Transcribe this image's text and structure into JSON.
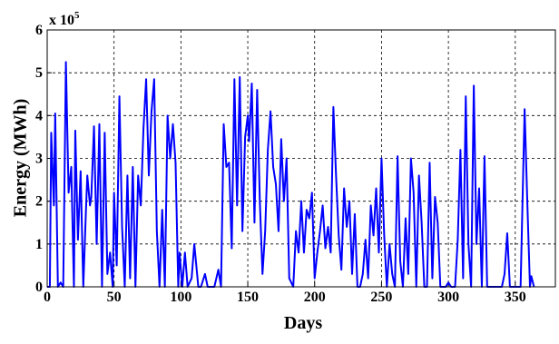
{
  "chart_data": {
    "type": "line",
    "xlabel": "Days",
    "ylabel": "Energy (MWh)",
    "exponent_base": "x 10",
    "exponent": "5",
    "xlim": [
      0,
      380
    ],
    "ylim": [
      0,
      6
    ],
    "xticks": [
      0,
      50,
      100,
      150,
      200,
      250,
      300,
      350
    ],
    "yticks": [
      0,
      1,
      2,
      3,
      4,
      5,
      6
    ],
    "grid": true,
    "x": [
      0,
      2,
      3,
      5,
      6,
      8,
      10,
      12,
      14,
      16,
      18,
      20,
      21,
      23,
      25,
      27,
      29,
      30,
      32,
      33,
      35,
      37,
      39,
      41,
      43,
      45,
      47,
      49,
      50,
      52,
      54,
      56,
      58,
      60,
      62,
      64,
      66,
      68,
      70,
      72,
      74,
      76,
      78,
      80,
      82,
      84,
      86,
      88,
      90,
      92,
      94,
      96,
      98,
      99,
      101,
      103,
      105,
      108,
      110,
      113,
      115,
      118,
      120,
      125,
      128,
      130,
      132,
      134,
      136,
      138,
      140,
      142,
      144,
      146,
      148,
      150,
      151,
      153,
      155,
      157,
      159,
      161,
      163,
      165,
      167,
      169,
      171,
      173,
      175,
      177,
      179,
      181,
      184,
      186,
      188,
      190,
      192,
      194,
      196,
      198,
      200,
      202,
      204,
      206,
      208,
      210,
      212,
      214,
      216,
      218,
      220,
      222,
      224,
      226,
      228,
      230,
      232,
      234,
      236,
      238,
      240,
      242,
      244,
      246,
      248,
      250,
      252,
      254,
      256,
      258,
      260,
      262,
      264,
      266,
      268,
      270,
      272,
      274,
      276,
      278,
      280,
      282,
      284,
      286,
      288,
      290,
      292,
      294,
      296,
      298,
      300,
      302,
      305,
      307,
      309,
      311,
      313,
      315,
      317,
      319,
      321,
      323,
      325,
      327,
      329,
      332,
      340,
      342,
      344,
      346,
      354,
      357,
      359,
      361,
      362,
      364
    ],
    "series": [
      {
        "name": "Energy",
        "color": "#0000ff",
        "values": [
          0,
          0,
          3.6,
          1.9,
          4.05,
          0,
          0.1,
          0,
          5.25,
          2.2,
          2.8,
          0,
          3.65,
          1.1,
          2.7,
          0,
          1.8,
          2.6,
          1.9,
          2.1,
          3.75,
          1.0,
          3.8,
          0,
          3.6,
          0.3,
          0.8,
          0,
          2.2,
          0.5,
          4.45,
          1.4,
          0,
          2.6,
          0.2,
          2.8,
          0,
          2.6,
          1.9,
          3.7,
          4.85,
          2.6,
          4.1,
          4.85,
          1.3,
          0,
          1.8,
          0,
          4.0,
          3.0,
          3.8,
          2.9,
          0,
          0.8,
          0,
          0.8,
          0,
          0.2,
          1.0,
          0,
          0,
          0.3,
          0,
          0,
          0.4,
          0,
          3.8,
          2.8,
          2.9,
          0.9,
          4.85,
          1.9,
          4.9,
          1.3,
          3.5,
          4.0,
          3.4,
          4.75,
          1.5,
          4.6,
          2.0,
          0.3,
          1.3,
          3.2,
          4.1,
          2.8,
          2.4,
          1.3,
          3.45,
          2.0,
          3.0,
          0.2,
          0,
          1.3,
          0.8,
          2.0,
          0.8,
          1.8,
          1.6,
          2.2,
          0.2,
          0.8,
          1.3,
          1.9,
          0.9,
          1.4,
          0.8,
          4.2,
          2.6,
          1.2,
          0.4,
          2.3,
          1.4,
          2.0,
          0.3,
          1.7,
          0,
          0,
          0.3,
          1.1,
          0.2,
          1.9,
          1.2,
          2.3,
          0.8,
          3.0,
          1.2,
          0,
          1.0,
          0.3,
          0,
          3.05,
          0.6,
          0,
          1.6,
          0.3,
          3.0,
          2.2,
          0,
          2.6,
          1.5,
          0,
          0,
          2.9,
          0.2,
          2.1,
          1.5,
          0,
          0,
          0,
          0.1,
          0,
          0,
          1.1,
          3.2,
          0.2,
          4.45,
          1.0,
          0,
          4.7,
          1.0,
          2.3,
          0,
          3.05,
          0,
          0,
          0,
          0.3,
          1.25,
          0,
          0,
          4.15,
          2.0,
          0,
          0.25,
          0
        ]
      }
    ]
  }
}
